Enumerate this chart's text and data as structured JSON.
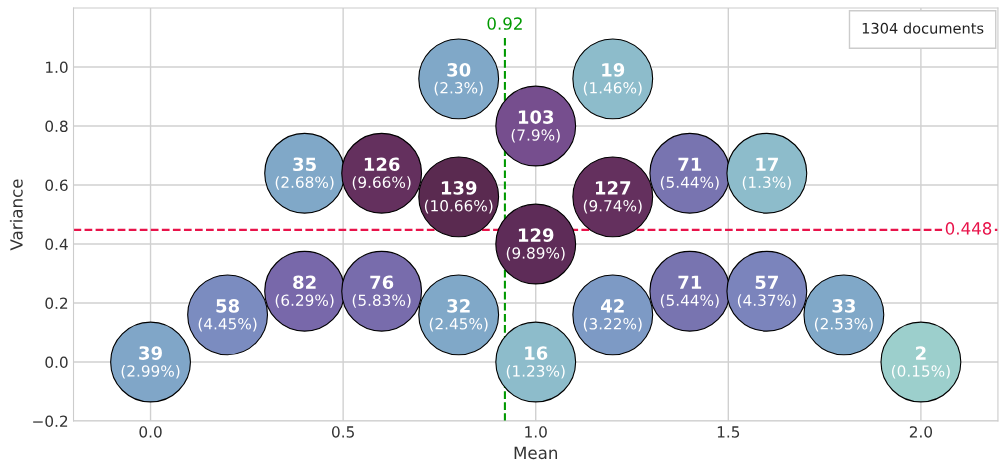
{
  "chart_data": {
    "type": "scatter",
    "xlabel": "Mean",
    "ylabel": "Variance",
    "x": [
      0.0,
      0.2,
      0.4,
      0.4,
      0.6,
      0.6,
      0.8,
      0.8,
      0.8,
      1.0,
      1.0,
      1.0,
      1.2,
      1.2,
      1.2,
      1.4,
      1.4,
      1.6,
      1.6,
      1.8,
      2.0
    ],
    "values": [
      0.0,
      0.16,
      0.24,
      0.64,
      0.24,
      0.64,
      0.96,
      0.56,
      0.16,
      0.8,
      0.4,
      0.0,
      0.96,
      0.56,
      0.16,
      0.64,
      0.24,
      0.64,
      0.24,
      0.16,
      0.0
    ],
    "colors": [
      "#80a6c8",
      "#7b8cc0",
      "#7868aa",
      "#80a8c8",
      "#786cac",
      "#64305e",
      "#80a8c8",
      "#5a2a50",
      "#80a8c8",
      "#764e8e",
      "#5e2c58",
      "#8dbccb",
      "#8dbccb",
      "#64305e",
      "#7d9ac5",
      "#7874b0",
      "#7874b0",
      "#8dbccb",
      "#7b84bc",
      "#80a8c8",
      "#9ccfcc"
    ],
    "annotations": [
      {
        "text": "39",
        "x": 0.0,
        "y": 0.0
      },
      {
        "text": "58",
        "x": 0.2,
        "y": 0.16
      },
      {
        "text": "82",
        "x": 0.4,
        "y": 0.24
      },
      {
        "text": "35",
        "x": 0.4,
        "y": 0.64
      },
      {
        "text": "76",
        "x": 0.6,
        "y": 0.24
      },
      {
        "text": "126",
        "x": 0.6,
        "y": 0.64
      },
      {
        "text": "30",
        "x": 0.8,
        "y": 0.96
      },
      {
        "text": "139",
        "x": 0.8,
        "y": 0.56
      },
      {
        "text": "32",
        "x": 0.8,
        "y": 0.16
      },
      {
        "text": "103",
        "x": 1.0,
        "y": 0.8
      },
      {
        "text": "129",
        "x": 1.0,
        "y": 0.4
      },
      {
        "text": "16",
        "x": 1.0,
        "y": 0.0
      },
      {
        "text": "19",
        "x": 1.2,
        "y": 0.96
      },
      {
        "text": "127",
        "x": 1.2,
        "y": 0.56
      },
      {
        "text": "42",
        "x": 1.2,
        "y": 0.16
      },
      {
        "text": "71",
        "x": 1.4,
        "y": 0.64
      },
      {
        "text": "71",
        "x": 1.4,
        "y": 0.24
      },
      {
        "text": "17",
        "x": 1.6,
        "y": 0.64
      },
      {
        "text": "57",
        "x": 1.6,
        "y": 0.24
      },
      {
        "text": "33",
        "x": 1.8,
        "y": 0.16
      },
      {
        "text": "2",
        "x": 2.0,
        "y": 0.0
      },
      {
        "text": "(2.99%)",
        "x": 0.0,
        "y": 0.0
      },
      {
        "text": "(4.45%)",
        "x": 0.2,
        "y": 0.16
      },
      {
        "text": "(6.29%)",
        "x": 0.4,
        "y": 0.24
      },
      {
        "text": "(2.68%)",
        "x": 0.4,
        "y": 0.64
      },
      {
        "text": "(5.83%)",
        "x": 0.6,
        "y": 0.24
      },
      {
        "text": "(9.66%)",
        "x": 0.6,
        "y": 0.64
      },
      {
        "text": "(2.3%)",
        "x": 0.8,
        "y": 0.96
      },
      {
        "text": "(10.66%)",
        "x": 0.8,
        "y": 0.56
      },
      {
        "text": "(2.45%)",
        "x": 0.8,
        "y": 0.16
      },
      {
        "text": "(7.9%)",
        "x": 1.0,
        "y": 0.8
      },
      {
        "text": "(9.89%)",
        "x": 1.0,
        "y": 0.4
      },
      {
        "text": "(1.23%)",
        "x": 1.0,
        "y": 0.0
      },
      {
        "text": "(1.46%)",
        "x": 1.2,
        "y": 0.96
      },
      {
        "text": "(9.74%)",
        "x": 1.2,
        "y": 0.56
      },
      {
        "text": "(3.22%)",
        "x": 1.2,
        "y": 0.16
      },
      {
        "text": "(5.44%)",
        "x": 1.4,
        "y": 0.64
      },
      {
        "text": "(5.44%)",
        "x": 1.4,
        "y": 0.24
      },
      {
        "text": "(1.3%)",
        "x": 1.6,
        "y": 0.64
      },
      {
        "text": "(4.37%)",
        "x": 1.6,
        "y": 0.24
      },
      {
        "text": "(2.53%)",
        "x": 1.8,
        "y": 0.16
      },
      {
        "text": "(0.15%)",
        "x": 2.0,
        "y": 0.0
      },
      "1304 documents"
    ],
    "ref_lines": [
      {
        "axis": "x",
        "value": 0.92,
        "label": "0.92",
        "color": "#009900",
        "line_style": "dashed"
      },
      {
        "axis": "y",
        "value": 0.448,
        "label": "0.448",
        "color": "#e8134a",
        "line_style": "dashed"
      }
    ],
    "xlim": [
      -0.2,
      2.2
    ],
    "ylim": [
      -0.2,
      1.2
    ],
    "xticks": [
      {
        "value": 0,
        "label": "0.0"
      },
      {
        "value": 0.5,
        "label": "0.5"
      },
      {
        "value": 1,
        "label": "1.0"
      },
      {
        "value": 1.5,
        "label": "1.5"
      },
      {
        "value": 2,
        "label": "2.0"
      }
    ],
    "yticks": [
      {
        "value": -0.2,
        "label": "−0.2"
      },
      {
        "value": 0,
        "label": "0.0"
      },
      {
        "value": 0.2,
        "label": "0.2"
      },
      {
        "value": 0.4,
        "label": "0.4"
      },
      {
        "value": 0.6,
        "label": "0.6"
      },
      {
        "value": 0.8,
        "label": "0.8"
      },
      {
        "value": 1,
        "label": "1.0"
      }
    ],
    "grid": true
  }
}
